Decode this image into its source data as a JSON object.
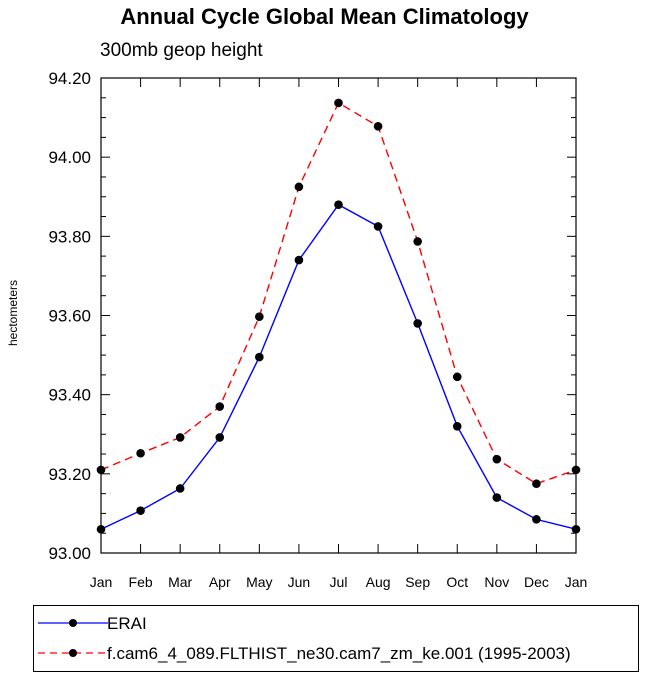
{
  "title": "Annual Cycle Global Mean Climatology",
  "subtitle": "300mb geop height",
  "chart_data": {
    "type": "line",
    "title": "Annual Cycle Global Mean Climatology",
    "subtitle": "300mb geop height",
    "xlabel": "",
    "ylabel": "hectometers",
    "categories": [
      "Jan",
      "Feb",
      "Mar",
      "Apr",
      "May",
      "Jun",
      "Jul",
      "Aug",
      "Sep",
      "Oct",
      "Nov",
      "Dec",
      "Jan"
    ],
    "ylim": [
      93.0,
      94.2
    ],
    "yticks": [
      "93.00",
      "93.20",
      "93.40",
      "93.60",
      "93.80",
      "94.00",
      "94.20"
    ],
    "grid": false,
    "legend_position": "bottom",
    "series": [
      {
        "name": "ERAI",
        "color": "#0000ff",
        "dash": "solid",
        "values": [
          93.06,
          93.107,
          93.163,
          93.292,
          93.495,
          93.74,
          93.88,
          93.825,
          93.58,
          93.32,
          93.14,
          93.085,
          93.06
        ]
      },
      {
        "name": "f.cam6_4_089.FLTHIST_ne30.cam7_zm_ke.001 (1995-2003)",
        "color": "#ff0000",
        "dash": "dashed",
        "values": [
          93.21,
          93.252,
          93.292,
          93.37,
          93.597,
          93.925,
          94.137,
          94.078,
          93.787,
          93.445,
          93.237,
          93.175,
          93.21
        ]
      }
    ]
  }
}
